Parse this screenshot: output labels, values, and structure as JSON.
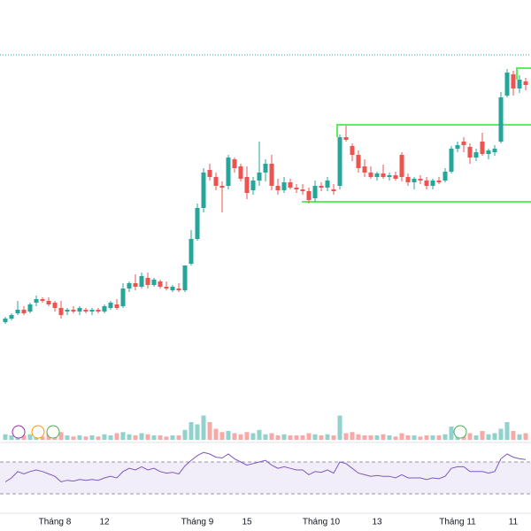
{
  "chart_data": {
    "type": "candlestick",
    "categories": [
      null,
      null,
      null,
      null,
      null,
      null,
      null,
      null,
      "Tháng 8",
      null,
      null,
      null,
      null,
      null,
      null,
      null,
      "12",
      null,
      null,
      null,
      null,
      null,
      null,
      null,
      null,
      null,
      null,
      null,
      null,
      null,
      null,
      "Tháng 9",
      null,
      null,
      null,
      null,
      null,
      null,
      null,
      "15",
      null,
      null,
      null,
      null,
      null,
      null,
      null,
      null,
      null,
      null,
      null,
      "Tháng 10",
      null,
      null,
      null,
      null,
      null,
      null,
      null,
      null,
      "13",
      null,
      null,
      null,
      null,
      null,
      null,
      null,
      null,
      null,
      null,
      null,
      null,
      "Tháng 11",
      null,
      null,
      null,
      null,
      null,
      null,
      null,
      null,
      "11",
      null,
      null
    ],
    "open": [
      36,
      40,
      46,
      50,
      48,
      58,
      62,
      60,
      58,
      52,
      48,
      50,
      48,
      50,
      48,
      50,
      48,
      52,
      56,
      54,
      74,
      80,
      76,
      86,
      78,
      82,
      76,
      72,
      74,
      72,
      102,
      130,
      165,
      208,
      200,
      190,
      190,
      220,
      212,
      200,
      185,
      196,
      205,
      215,
      190,
      185,
      194,
      188,
      186,
      184,
      176,
      190,
      188,
      186,
      190,
      245,
      235,
      225,
      212,
      205,
      200,
      204,
      200,
      202,
      225,
      200,
      194,
      198,
      196,
      190,
      196,
      196,
      206,
      232,
      240,
      234,
      222,
      240,
      226,
      228,
      240,
      292,
      316,
      300,
      308
    ],
    "high": [
      42,
      46,
      60,
      54,
      58,
      66,
      64,
      64,
      60,
      60,
      52,
      54,
      54,
      52,
      52,
      52,
      56,
      60,
      62,
      80,
      82,
      90,
      92,
      92,
      86,
      84,
      82,
      78,
      80,
      100,
      140,
      170,
      210,
      215,
      205,
      195,
      225,
      222,
      215,
      212,
      200,
      240,
      220,
      225,
      198,
      200,
      198,
      192,
      192,
      188,
      196,
      194,
      200,
      192,
      248,
      258,
      238,
      230,
      220,
      212,
      206,
      214,
      205,
      206,
      228,
      204,
      200,
      202,
      200,
      198,
      200,
      210,
      235,
      240,
      245,
      238,
      232,
      250,
      232,
      236,
      296,
      322,
      320,
      315,
      312
    ],
    "low": [
      34,
      38,
      44,
      44,
      46,
      54,
      58,
      54,
      48,
      40,
      44,
      46,
      44,
      46,
      44,
      46,
      46,
      50,
      50,
      52,
      70,
      72,
      74,
      74,
      76,
      74,
      72,
      70,
      70,
      70,
      100,
      128,
      160,
      196,
      185,
      160,
      186,
      205,
      195,
      175,
      180,
      190,
      195,
      185,
      180,
      182,
      186,
      182,
      180,
      170,
      172,
      184,
      184,
      180,
      186,
      240,
      218,
      205,
      200,
      198,
      196,
      198,
      196,
      196,
      195,
      190,
      186,
      192,
      186,
      186,
      192,
      194,
      204,
      228,
      228,
      215,
      218,
      224,
      220,
      224,
      238,
      290,
      292,
      295,
      298
    ],
    "close": [
      40,
      44,
      50,
      46,
      56,
      62,
      60,
      56,
      52,
      44,
      50,
      48,
      52,
      48,
      50,
      48,
      54,
      58,
      52,
      74,
      80,
      76,
      88,
      78,
      84,
      76,
      74,
      76,
      72,
      100,
      130,
      165,
      205,
      200,
      190,
      188,
      222,
      210,
      198,
      182,
      196,
      205,
      215,
      190,
      185,
      194,
      188,
      186,
      184,
      174,
      190,
      188,
      196,
      184,
      245,
      242,
      225,
      210,
      205,
      200,
      204,
      200,
      202,
      198,
      200,
      194,
      198,
      196,
      190,
      196,
      194,
      206,
      232,
      236,
      236,
      222,
      228,
      226,
      230,
      232,
      290,
      318,
      300,
      310,
      304
    ],
    "volume": [
      5,
      4,
      6,
      4,
      5,
      4,
      3,
      6,
      5,
      7,
      4,
      3,
      4,
      3,
      4,
      3,
      5,
      4,
      6,
      7,
      5,
      4,
      6,
      5,
      4,
      4,
      3,
      4,
      4,
      9,
      16,
      14,
      22,
      16,
      10,
      7,
      8,
      6,
      5,
      7,
      6,
      9,
      5,
      6,
      4,
      5,
      4,
      4,
      4,
      6,
      5,
      4,
      5,
      4,
      22,
      6,
      7,
      5,
      4,
      4,
      4,
      5,
      4,
      3,
      6,
      4,
      4,
      3,
      4,
      4,
      4,
      5,
      12,
      5,
      4,
      6,
      4,
      8,
      5,
      6,
      10,
      16,
      8,
      5,
      6
    ],
    "rsi": [
      45,
      50,
      58,
      55,
      58,
      60,
      58,
      55,
      52,
      45,
      47,
      46,
      48,
      47,
      48,
      47,
      50,
      52,
      50,
      58,
      62,
      60,
      64,
      60,
      62,
      58,
      56,
      57,
      55,
      65,
      72,
      78,
      82,
      80,
      76,
      75,
      80,
      74,
      70,
      66,
      68,
      70,
      72,
      66,
      62,
      64,
      62,
      60,
      60,
      54,
      58,
      57,
      60,
      56,
      70,
      68,
      62,
      56,
      54,
      52,
      53,
      52,
      52,
      50,
      54,
      50,
      50,
      50,
      48,
      50,
      49,
      52,
      62,
      64,
      64,
      58,
      58,
      58,
      56,
      58,
      74,
      80,
      76,
      74,
      73
    ],
    "ylim": [
      0,
      400
    ],
    "volume_ylim": [
      0,
      32
    ],
    "rsi_ylim": [
      0,
      100
    ],
    "rsi_band": [
      30,
      70
    ],
    "up_color": "#26a69a",
    "down_color": "#ef5350",
    "rsi_color": "#7e57c2"
  }
}
